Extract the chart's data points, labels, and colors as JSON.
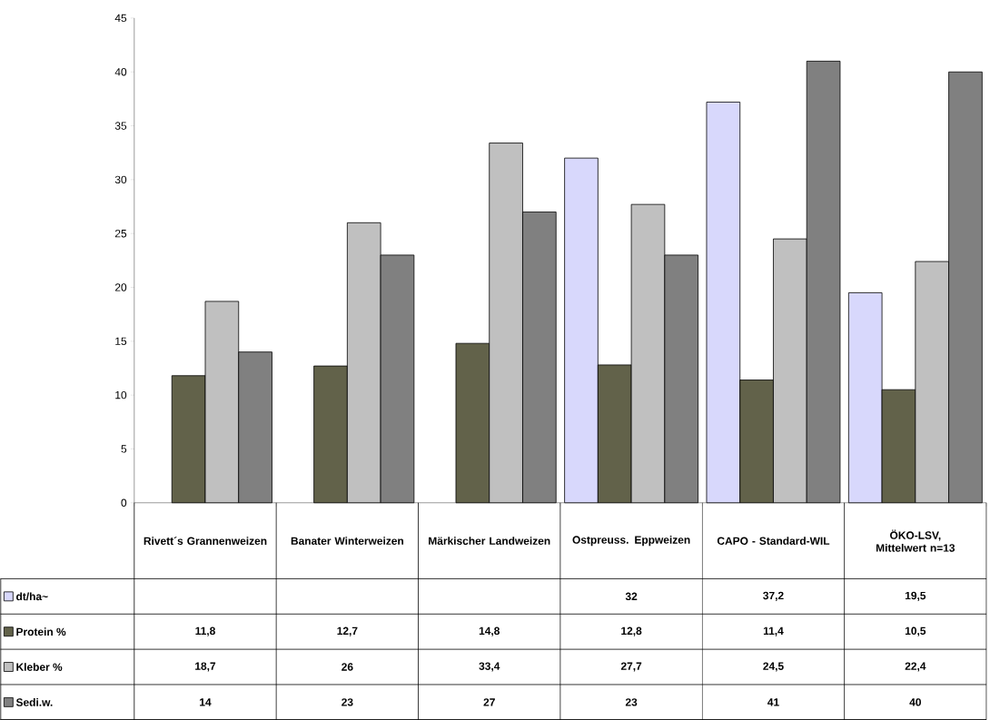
{
  "chart_data": {
    "type": "bar",
    "categories": [
      "Rivett´s Grannenweizen",
      "Banater Winterweizen",
      "Märkischer Landweizen",
      "Ostpreuss. Eppweizen",
      "CAPO - Standard-WIL",
      "ÖKO-LSV, Mittelwert n=13"
    ],
    "series": [
      {
        "name": "dt/ha~",
        "color": "#d8d8fc",
        "values": [
          null,
          null,
          null,
          32,
          37.2,
          19.5
        ],
        "value_labels": [
          null,
          null,
          null,
          "32",
          "37,2",
          "19,5"
        ]
      },
      {
        "name": "Protein %",
        "color": "#62624a",
        "values": [
          11.8,
          12.7,
          14.8,
          12.8,
          11.4,
          10.5
        ],
        "value_labels": [
          "11,8",
          "12,7",
          "14,8",
          "12,8",
          "11,4",
          "10,5"
        ]
      },
      {
        "name": "Kleber %",
        "color": "#c0c0c0",
        "values": [
          18.7,
          26,
          33.4,
          27.7,
          24.5,
          22.4
        ],
        "value_labels": [
          "18,7",
          "26",
          "33,4",
          "27,7",
          "24,5",
          "22,4"
        ]
      },
      {
        "name": "Sedi.w.",
        "color": "#808080",
        "values": [
          14,
          23,
          27,
          23,
          41,
          40
        ],
        "value_labels": [
          "14",
          "23",
          "27",
          "23",
          "41",
          "40"
        ]
      }
    ],
    "ylim": [
      0,
      45
    ],
    "yticks": [
      0,
      5,
      10,
      15,
      20,
      25,
      30,
      35,
      40,
      45
    ],
    "grid": false,
    "legend": "bottom"
  }
}
